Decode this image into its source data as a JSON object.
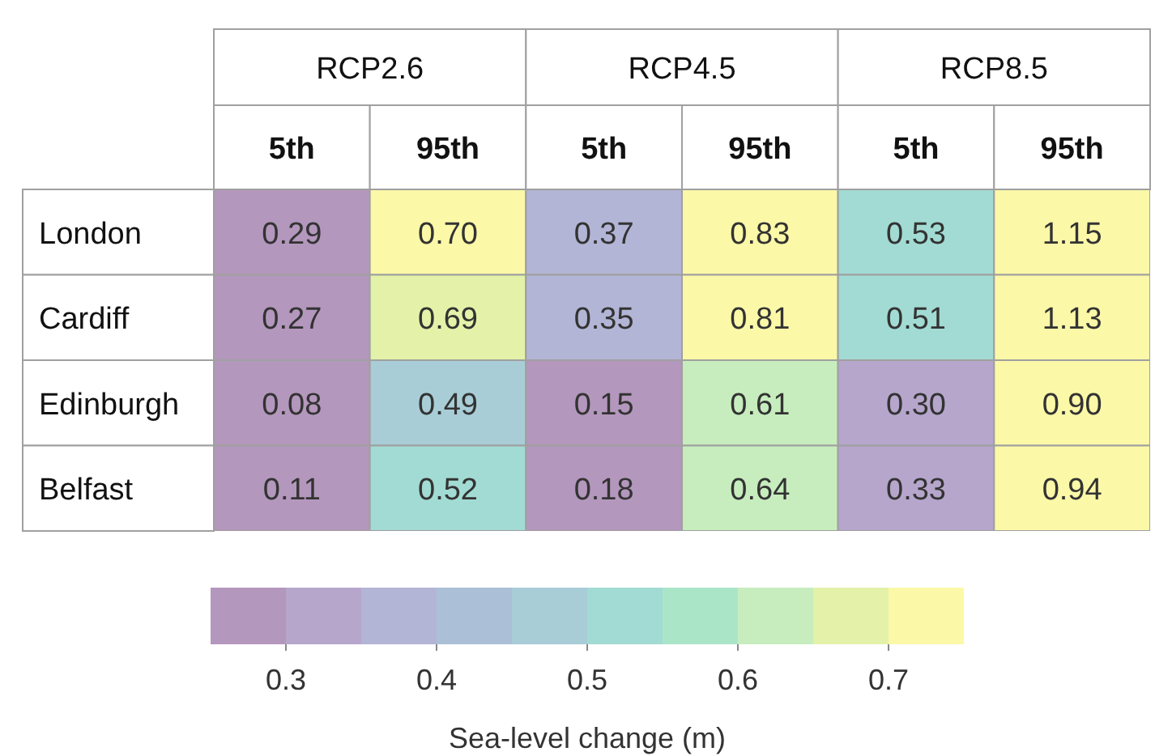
{
  "chart_data": {
    "type": "heatmap",
    "annotations": [
      "RCP2.6",
      "RCP4.5",
      "RCP8.5"
    ],
    "categories": [
      "5th",
      "95th",
      "5th",
      "95th",
      "5th",
      "95th"
    ],
    "y_categories": [
      "London",
      "Cardiff",
      "Edinburgh",
      "Belfast"
    ],
    "cells": [
      [
        0.29,
        0.7,
        0.37,
        0.83,
        0.53,
        1.15
      ],
      [
        0.27,
        0.69,
        0.35,
        0.81,
        0.51,
        1.13
      ],
      [
        0.08,
        0.49,
        0.15,
        0.61,
        0.3,
        0.9
      ],
      [
        0.11,
        0.52,
        0.18,
        0.64,
        0.33,
        0.94
      ]
    ],
    "cell_labels": [
      [
        "0.29",
        "0.70",
        "0.37",
        "0.83",
        "0.53",
        "1.15"
      ],
      [
        "0.27",
        "0.69",
        "0.35",
        "0.81",
        "0.51",
        "1.13"
      ],
      [
        "0.08",
        "0.49",
        "0.15",
        "0.61",
        "0.30",
        "0.90"
      ],
      [
        "0.11",
        "0.52",
        "0.18",
        "0.64",
        "0.33",
        "0.94"
      ]
    ],
    "clim": [
      0.25,
      0.75
    ],
    "cticks": [
      0.3,
      0.4,
      0.5,
      0.6,
      0.7
    ],
    "clabel": "Sea-level change (m)"
  }
}
